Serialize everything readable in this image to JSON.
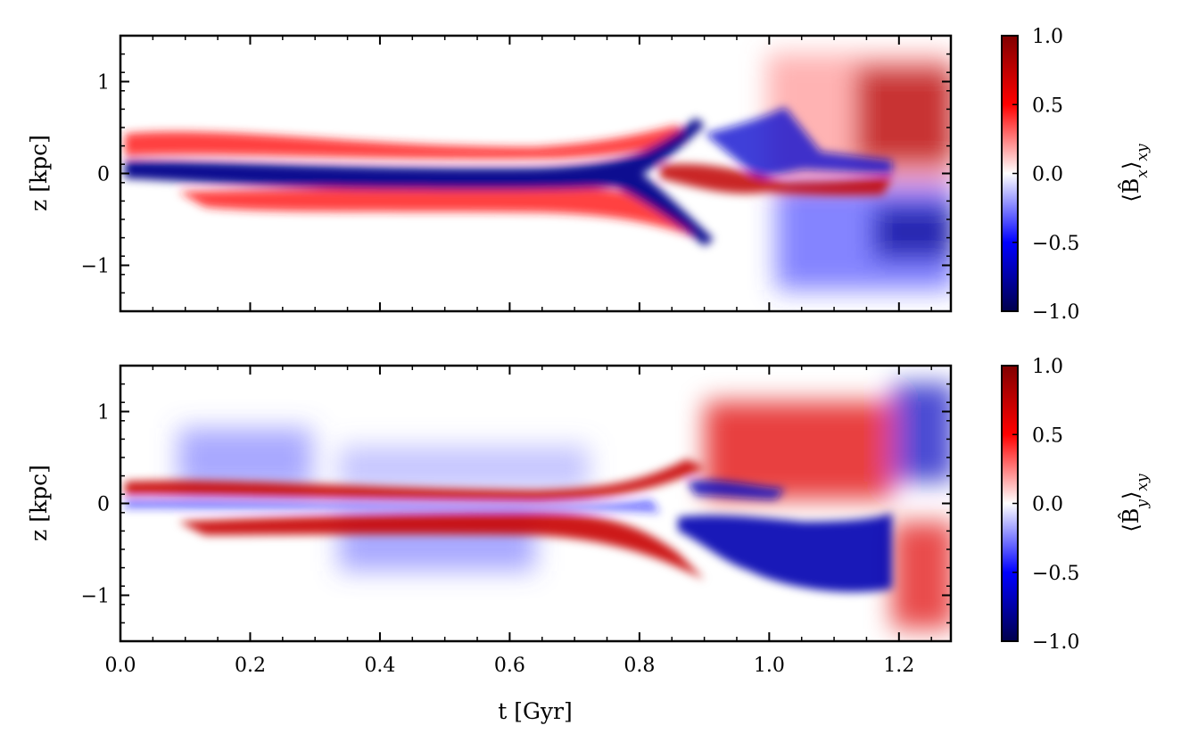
{
  "colors": {
    "negative_extreme": "#00004c",
    "negative": "#0000ff",
    "zero": "#ffffff",
    "positive": "#ff0000",
    "positive_extreme": "#800000"
  },
  "chart_data": [
    {
      "type": "heatmap",
      "title": "",
      "colormap": "seismic",
      "xlabel": "",
      "ylabel": "z [kpc]",
      "xlim": [
        0.0,
        1.28
      ],
      "ylim": [
        -1.5,
        1.5
      ],
      "x_ticks": [
        0.0,
        0.2,
        0.4,
        0.6,
        0.8,
        1.0,
        1.2
      ],
      "x_tick_labels": [],
      "y_ticks": [
        -1,
        0,
        1
      ],
      "y_tick_labels": [
        "−1",
        "0",
        "1"
      ],
      "colorbar": {
        "label_base": "⟨B̂",
        "label_sub": "x",
        "label_close": "⟩",
        "label_sub2": "xy",
        "range": [
          -1.0,
          1.0
        ],
        "ticks": [
          -1.0,
          -0.5,
          0.0,
          0.5,
          1.0
        ],
        "tick_labels": [
          "−1.0",
          "−0.5",
          "0.0",
          "0.5",
          "1.0"
        ]
      },
      "features": {
        "main_band": "blue",
        "upper_band": "red",
        "lower_band": "red",
        "split_time": 0.76
      }
    },
    {
      "type": "heatmap",
      "title": "",
      "colormap": "seismic",
      "xlabel": "t [Gyr]",
      "ylabel": "z [kpc]",
      "xlim": [
        0.0,
        1.28
      ],
      "ylim": [
        -1.5,
        1.5
      ],
      "x_ticks": [
        0.0,
        0.2,
        0.4,
        0.6,
        0.8,
        1.0,
        1.2
      ],
      "x_tick_labels": [
        "0.0",
        "0.2",
        "0.4",
        "0.6",
        "0.8",
        "1.0",
        "1.2"
      ],
      "y_ticks": [
        -1,
        0,
        1
      ],
      "y_tick_labels": [
        "−1",
        "0",
        "1"
      ],
      "colorbar": {
        "label_base": "⟨B̂",
        "label_sub": "y",
        "label_close": "⟩",
        "label_sub2": "xy",
        "range": [
          -1.0,
          1.0
        ],
        "ticks": [
          -1.0,
          -0.5,
          0.0,
          0.5,
          1.0
        ],
        "tick_labels": [
          "−1.0",
          "−0.5",
          "0.0",
          "0.5",
          "1.0"
        ]
      },
      "features": {
        "upper_band": "red",
        "lower_band": "red",
        "center_band": "blue",
        "split_time": 0.76
      }
    }
  ]
}
